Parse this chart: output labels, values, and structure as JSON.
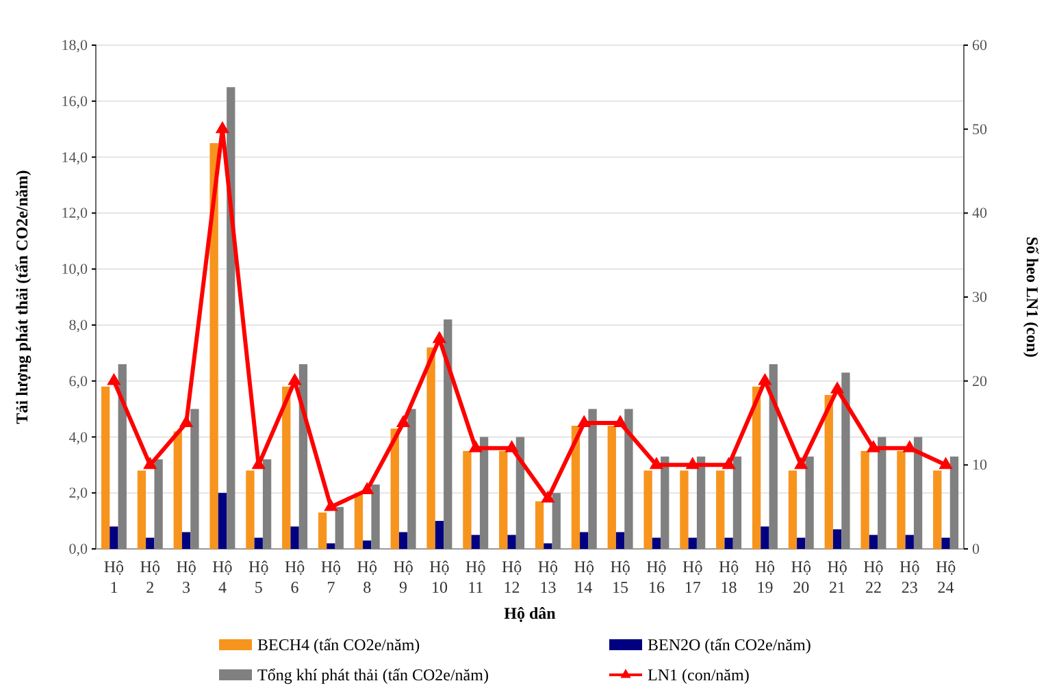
{
  "chart_data": {
    "type": "bar",
    "xlabel": "Hộ dân",
    "ylabel": "Tải lượng phát thải (tấn CO2e/năm)",
    "y2label": "Số heo LN1 (con)",
    "categories": [
      "Hộ 1",
      "Hộ 2",
      "Hộ 3",
      "Hộ 4",
      "Hộ 5",
      "Hộ 6",
      "Hộ 7",
      "Hộ 8",
      "Hộ 9",
      "Hộ 10",
      "Hộ 11",
      "Hộ 12",
      "Hộ 13",
      "Hộ 14",
      "Hộ 15",
      "Hộ 16",
      "Hộ 17",
      "Hộ 18",
      "Hộ 19",
      "Hộ 20",
      "Hộ 21",
      "Hộ 22",
      "Hộ 23",
      "Hộ 24"
    ],
    "series": [
      {
        "name": "BECH4 (tấn CO2e/năm)",
        "color": "#f7941d",
        "values": [
          5.8,
          2.8,
          4.2,
          14.5,
          2.8,
          5.8,
          1.3,
          2.0,
          4.3,
          7.2,
          3.5,
          3.5,
          1.7,
          4.4,
          4.4,
          2.8,
          2.8,
          2.8,
          5.8,
          2.8,
          5.5,
          3.5,
          3.5,
          2.8
        ]
      },
      {
        "name": "BEN2O (tấn CO2e/năm)",
        "color": "#000080",
        "values": [
          0.8,
          0.4,
          0.6,
          2.0,
          0.4,
          0.8,
          0.2,
          0.3,
          0.6,
          1.0,
          0.5,
          0.5,
          0.2,
          0.6,
          0.6,
          0.4,
          0.4,
          0.4,
          0.8,
          0.4,
          0.7,
          0.5,
          0.5,
          0.4
        ]
      },
      {
        "name": "Tổng khí phát thải (tấn CO2e/năm)",
        "color": "#808080",
        "values": [
          6.6,
          3.2,
          5.0,
          16.5,
          3.2,
          6.6,
          1.5,
          2.3,
          5.0,
          8.2,
          4.0,
          4.0,
          2.0,
          5.0,
          5.0,
          3.3,
          3.3,
          3.3,
          6.6,
          3.3,
          6.3,
          4.0,
          4.0,
          3.3
        ]
      },
      {
        "name": "LN1 (con/năm)",
        "type": "line",
        "axis": "y2",
        "color": "#ff0000",
        "marker": "triangle",
        "values": [
          20,
          10,
          15,
          50,
          10,
          20,
          5,
          7,
          15,
          25,
          12,
          12,
          6,
          15,
          15,
          10,
          10,
          10,
          20,
          10,
          19,
          12,
          12,
          10
        ]
      }
    ],
    "ylim": [
      0,
      18
    ],
    "yticks": [
      {
        "value": 0,
        "label": "0,0"
      },
      {
        "value": 2,
        "label": "2,0"
      },
      {
        "value": 4,
        "label": "4,0"
      },
      {
        "value": 6,
        "label": "6,0"
      },
      {
        "value": 8,
        "label": "8,0"
      },
      {
        "value": 10,
        "label": "10,0"
      },
      {
        "value": 12,
        "label": "12,0"
      },
      {
        "value": 14,
        "label": "14,0"
      },
      {
        "value": 16,
        "label": "16,0"
      },
      {
        "value": 18,
        "label": "18,0"
      }
    ],
    "y2lim": [
      0,
      60
    ],
    "y2ticks": [
      0,
      10,
      20,
      30,
      40,
      50,
      60
    ],
    "grid": "y",
    "legend": "bottom"
  }
}
